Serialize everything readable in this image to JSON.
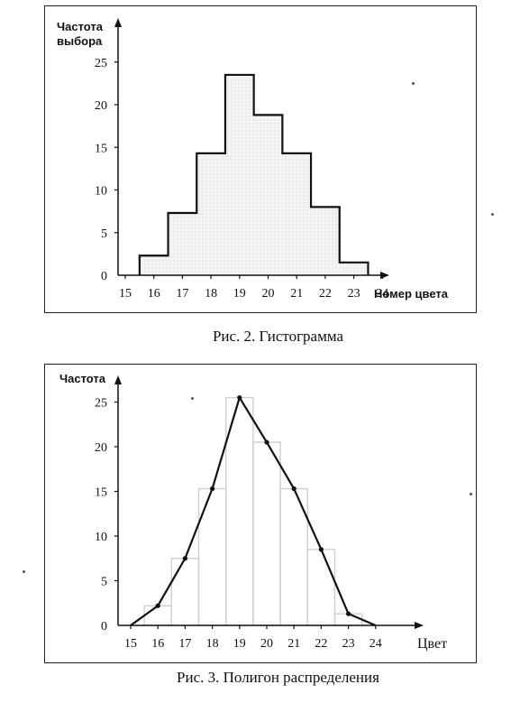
{
  "figures": [
    {
      "caption": "Рис. 2. Гистограмма",
      "ylabel_line1": "Частота",
      "ylabel_line2": "выбора",
      "xlabel": "Номер цвета"
    },
    {
      "caption": "Рис. 3. Полигон распределения",
      "ylabel": "Частота",
      "xlabel": "Цвет"
    }
  ],
  "chart_data": [
    {
      "type": "bar",
      "title": "Рис. 2. Гистограмма",
      "xlabel": "Номер цвета",
      "ylabel": "Частота выбора",
      "x_ticks": [
        "15",
        "16",
        "17",
        "18",
        "19",
        "20",
        "21",
        "22",
        "23",
        "24"
      ],
      "y_ticks": [
        "0",
        "5",
        "10",
        "15",
        "20",
        "25"
      ],
      "ylim": [
        0,
        25
      ],
      "bins": [
        {
          "from": 15.5,
          "to": 16.5,
          "value": 2.3
        },
        {
          "from": 16.5,
          "to": 17.5,
          "value": 7.3
        },
        {
          "from": 17.5,
          "to": 18.5,
          "value": 14.3
        },
        {
          "from": 18.5,
          "to": 19.5,
          "value": 23.5
        },
        {
          "from": 19.5,
          "to": 20.5,
          "value": 18.8
        },
        {
          "from": 20.5,
          "to": 21.5,
          "value": 14.3
        },
        {
          "from": 21.5,
          "to": 22.5,
          "value": 8.0
        },
        {
          "from": 22.5,
          "to": 23.5,
          "value": 1.5
        }
      ]
    },
    {
      "type": "line",
      "title": "Рис. 3. Полигон распределения",
      "xlabel": "Цвет",
      "ylabel": "Частота",
      "x_ticks": [
        "15",
        "16",
        "17",
        "18",
        "19",
        "20",
        "21",
        "22",
        "23",
        "24"
      ],
      "y_ticks": [
        "0",
        "5",
        "10",
        "15",
        "20",
        "25"
      ],
      "ylim": [
        0,
        25
      ],
      "points": [
        {
          "x": 15.0,
          "y": 0
        },
        {
          "x": 16.0,
          "y": 2.2
        },
        {
          "x": 17.0,
          "y": 7.5
        },
        {
          "x": 18.0,
          "y": 15.3
        },
        {
          "x": 19.0,
          "y": 25.5
        },
        {
          "x": 20.0,
          "y": 20.5
        },
        {
          "x": 21.0,
          "y": 15.3
        },
        {
          "x": 22.0,
          "y": 8.5
        },
        {
          "x": 23.0,
          "y": 1.3
        },
        {
          "x": 24.0,
          "y": 0
        }
      ],
      "background_bins": [
        {
          "from": 15.5,
          "to": 16.5,
          "value": 2.2
        },
        {
          "from": 16.5,
          "to": 17.5,
          "value": 7.5
        },
        {
          "from": 17.5,
          "to": 18.5,
          "value": 15.3
        },
        {
          "from": 18.5,
          "to": 19.5,
          "value": 25.5
        },
        {
          "from": 19.5,
          "to": 20.5,
          "value": 20.5
        },
        {
          "from": 20.5,
          "to": 21.5,
          "value": 15.3
        },
        {
          "from": 21.5,
          "to": 22.5,
          "value": 8.5
        },
        {
          "from": 22.5,
          "to": 23.5,
          "value": 1.3
        }
      ]
    }
  ]
}
